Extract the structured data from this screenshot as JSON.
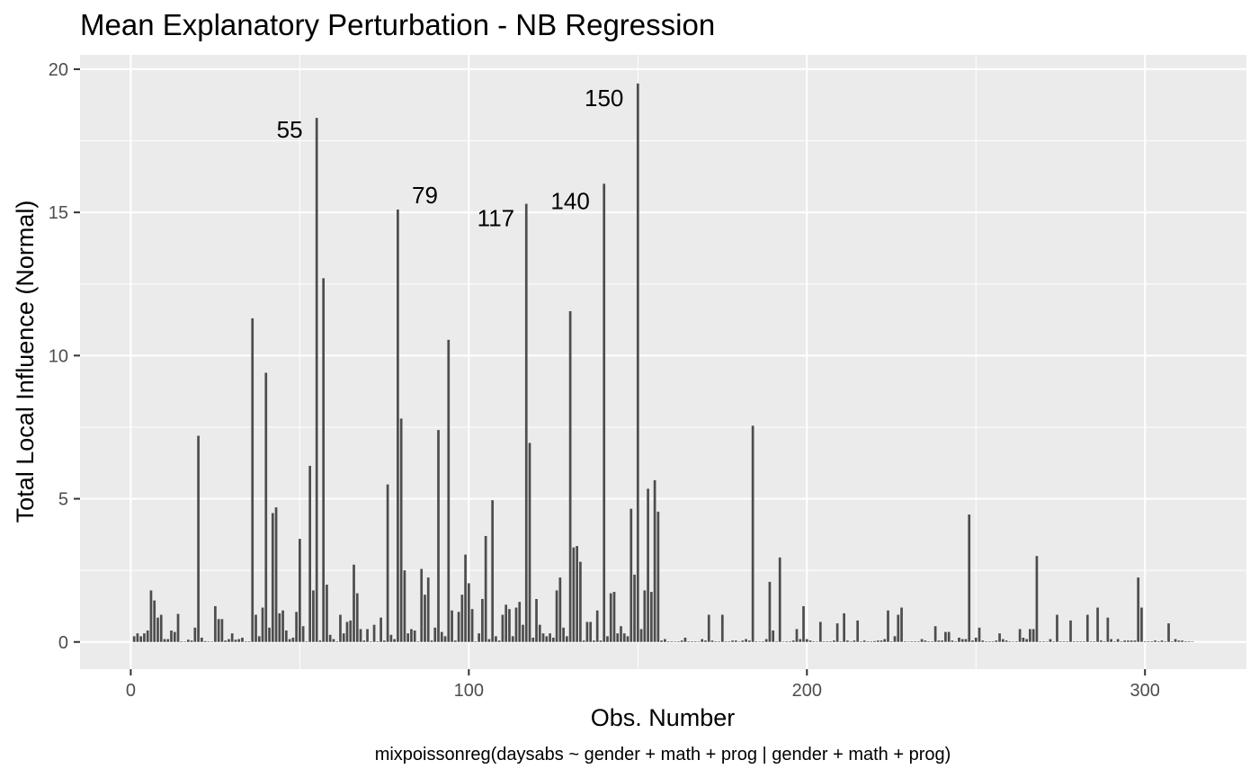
{
  "chart_data": {
    "type": "bar",
    "title": "Mean Explanatory Perturbation - NB Regression",
    "xlabel": "Obs. Number",
    "ylabel": "Total Local Influence (Normal)",
    "caption": "mixpoissonreg(daysabs ~ gender + math + prog | gender + math + prog)",
    "xlim": [
      -15,
      330
    ],
    "ylim": [
      -0.95,
      20.5
    ],
    "x_ticks": [
      0,
      100,
      200,
      300
    ],
    "y_ticks": [
      0,
      5,
      10,
      15,
      20
    ],
    "grid": true,
    "bar_color": "#4d4d4d",
    "panel_color": "#ebebeb",
    "grid_color": "#ffffff",
    "annotations": [
      {
        "label": "55",
        "x": 47,
        "y": 17.9
      },
      {
        "label": "79",
        "x": 87,
        "y": 15.6
      },
      {
        "label": "117",
        "x": 108,
        "y": 14.8
      },
      {
        "label": "140",
        "x": 130,
        "y": 15.4
      },
      {
        "label": "150",
        "x": 140,
        "y": 19.0
      }
    ],
    "x": [
      1,
      2,
      3,
      4,
      5,
      6,
      7,
      8,
      9,
      10,
      11,
      12,
      13,
      14,
      15,
      16,
      17,
      18,
      19,
      20,
      21,
      22,
      23,
      24,
      25,
      26,
      27,
      28,
      29,
      30,
      31,
      32,
      33,
      34,
      35,
      36,
      37,
      38,
      39,
      40,
      41,
      42,
      43,
      44,
      45,
      46,
      47,
      48,
      49,
      50,
      51,
      52,
      53,
      54,
      55,
      56,
      57,
      58,
      59,
      60,
      61,
      62,
      63,
      64,
      65,
      66,
      67,
      68,
      69,
      70,
      71,
      72,
      73,
      74,
      75,
      76,
      77,
      78,
      79,
      80,
      81,
      82,
      83,
      84,
      85,
      86,
      87,
      88,
      89,
      90,
      91,
      92,
      93,
      94,
      95,
      96,
      97,
      98,
      99,
      100,
      101,
      102,
      103,
      104,
      105,
      106,
      107,
      108,
      109,
      110,
      111,
      112,
      113,
      114,
      115,
      116,
      117,
      118,
      119,
      120,
      121,
      122,
      123,
      124,
      125,
      126,
      127,
      128,
      129,
      130,
      131,
      132,
      133,
      134,
      135,
      136,
      137,
      138,
      139,
      140,
      141,
      142,
      143,
      144,
      145,
      146,
      147,
      148,
      149,
      150,
      151,
      152,
      153,
      154,
      155,
      156,
      157,
      158,
      159,
      160,
      161,
      162,
      163,
      164,
      165,
      166,
      167,
      168,
      169,
      170,
      171,
      172,
      173,
      174,
      175,
      176,
      177,
      178,
      179,
      180,
      181,
      182,
      183,
      184,
      185,
      186,
      187,
      188,
      189,
      190,
      191,
      192,
      193,
      194,
      195,
      196,
      197,
      198,
      199,
      200,
      201,
      202,
      203,
      204,
      205,
      206,
      207,
      208,
      209,
      210,
      211,
      212,
      213,
      214,
      215,
      216,
      217,
      218,
      219,
      220,
      221,
      222,
      223,
      224,
      225,
      226,
      227,
      228,
      229,
      230,
      231,
      232,
      233,
      234,
      235,
      236,
      237,
      238,
      239,
      240,
      241,
      242,
      243,
      244,
      245,
      246,
      247,
      248,
      249,
      250,
      251,
      252,
      253,
      254,
      255,
      256,
      257,
      258,
      259,
      260,
      261,
      262,
      263,
      264,
      265,
      266,
      267,
      268,
      269,
      270,
      271,
      272,
      273,
      274,
      275,
      276,
      277,
      278,
      279,
      280,
      281,
      282,
      283,
      284,
      285,
      286,
      287,
      288,
      289,
      290,
      291,
      292,
      293,
      294,
      295,
      296,
      297,
      298,
      299,
      300,
      301,
      302,
      303,
      304,
      305,
      306,
      307,
      308,
      309,
      310,
      311,
      312,
      313,
      314
    ],
    "values": [
      0.2,
      0.3,
      0.2,
      0.3,
      0.4,
      1.8,
      1.45,
      0.85,
      0.95,
      0.1,
      0.1,
      0.4,
      0.35,
      0.98,
      0.02,
      0.01,
      0.08,
      0.05,
      0.5,
      7.2,
      0.15,
      0.03,
      0.02,
      0.01,
      1.25,
      0.8,
      0.8,
      0.05,
      0.1,
      0.3,
      0.08,
      0.1,
      0.15,
      0.02,
      0.02,
      11.3,
      0.95,
      0.2,
      1.2,
      9.4,
      0.5,
      4.5,
      4.7,
      1.0,
      1.1,
      0.4,
      0.1,
      0.15,
      1.05,
      3.6,
      0.55,
      0.02,
      6.15,
      1.8,
      18.3,
      0.05,
      12.7,
      2.0,
      0.25,
      0.1,
      0.02,
      0.95,
      0.3,
      0.7,
      0.75,
      2.7,
      1.7,
      0.45,
      0.05,
      0.45,
      0.02,
      0.6,
      0.02,
      0.85,
      0.05,
      5.5,
      0.25,
      0.1,
      15.1,
      7.8,
      2.5,
      0.3,
      0.45,
      0.4,
      0.02,
      2.55,
      1.65,
      2.25,
      0.05,
      0.5,
      7.4,
      0.35,
      0.2,
      10.55,
      1.1,
      0.05,
      1.05,
      1.65,
      3.05,
      2.05,
      1.15,
      0.02,
      0.3,
      1.5,
      3.7,
      0.1,
      4.95,
      0.2,
      0.05,
      0.95,
      1.3,
      1.15,
      0.2,
      1.2,
      1.4,
      0.6,
      15.3,
      6.95,
      0.15,
      1.5,
      0.6,
      0.3,
      0.2,
      0.3,
      0.15,
      1.8,
      2.25,
      0.5,
      0.2,
      11.55,
      3.3,
      3.35,
      2.8,
      0.05,
      0.7,
      0.7,
      0.05,
      1.1,
      0.05,
      16.0,
      0.2,
      1.7,
      1.75,
      0.3,
      0.55,
      0.3,
      0.2,
      4.65,
      2.35,
      19.5,
      0.45,
      1.8,
      5.35,
      1.75,
      5.65,
      4.55,
      0.05,
      0.1,
      0.02,
      0.02,
      0.01,
      0.02,
      0.05,
      0.15,
      0.02,
      0.02,
      0.02,
      0.01,
      0.1,
      0.05,
      0.95,
      0.05,
      0.02,
      0.02,
      0.95,
      0.02,
      0.02,
      0.05,
      0.05,
      0.01,
      0.05,
      0.1,
      0.05,
      7.55,
      0.02,
      0.01,
      0.02,
      0.1,
      2.1,
      0.4,
      0.02,
      2.95,
      0.01,
      0.02,
      0.02,
      0.05,
      0.45,
      0.1,
      1.25,
      0.1,
      0.05,
      0.02,
      0.01,
      0.7,
      0.02,
      0.02,
      0.02,
      0.05,
      0.65,
      0.02,
      1.0,
      0.05,
      0.02,
      0.05,
      0.75,
      0.02,
      0.05,
      0.02,
      0.02,
      0.03,
      0.05,
      0.05,
      0.1,
      1.1,
      0.02,
      0.2,
      0.95,
      1.2,
      0.02,
      0.01,
      0.02,
      0.02,
      0.02,
      0.1,
      0.05,
      0.02,
      0.02,
      0.55,
      0.05,
      0.05,
      0.35,
      0.35,
      0.05,
      0.02,
      0.15,
      0.1,
      0.1,
      4.45,
      0.05,
      0.15,
      0.5,
      0.05,
      0.02,
      0.02,
      0.02,
      0.05,
      0.3,
      0.1,
      0.05,
      0.02,
      0.01,
      0.02,
      0.45,
      0.15,
      0.1,
      0.45,
      0.45,
      3.0,
      0.02,
      0.02,
      0.01,
      0.1,
      0.02,
      0.95,
      0.02,
      0.02,
      0.02,
      0.75,
      0.02,
      0.02,
      0.02,
      0.02,
      0.95,
      0.02,
      0.02,
      1.2,
      0.05,
      0.02,
      0.85,
      0.1,
      0.02,
      0.1,
      0.02,
      0.05,
      0.05,
      0.05,
      0.05,
      2.25,
      1.2,
      0.02,
      0.02,
      0.02,
      0.05,
      0.02,
      0.05,
      0.02,
      0.65,
      0.02,
      0.1,
      0.05,
      0.05,
      0.02,
      0.02,
      0.01
    ]
  }
}
